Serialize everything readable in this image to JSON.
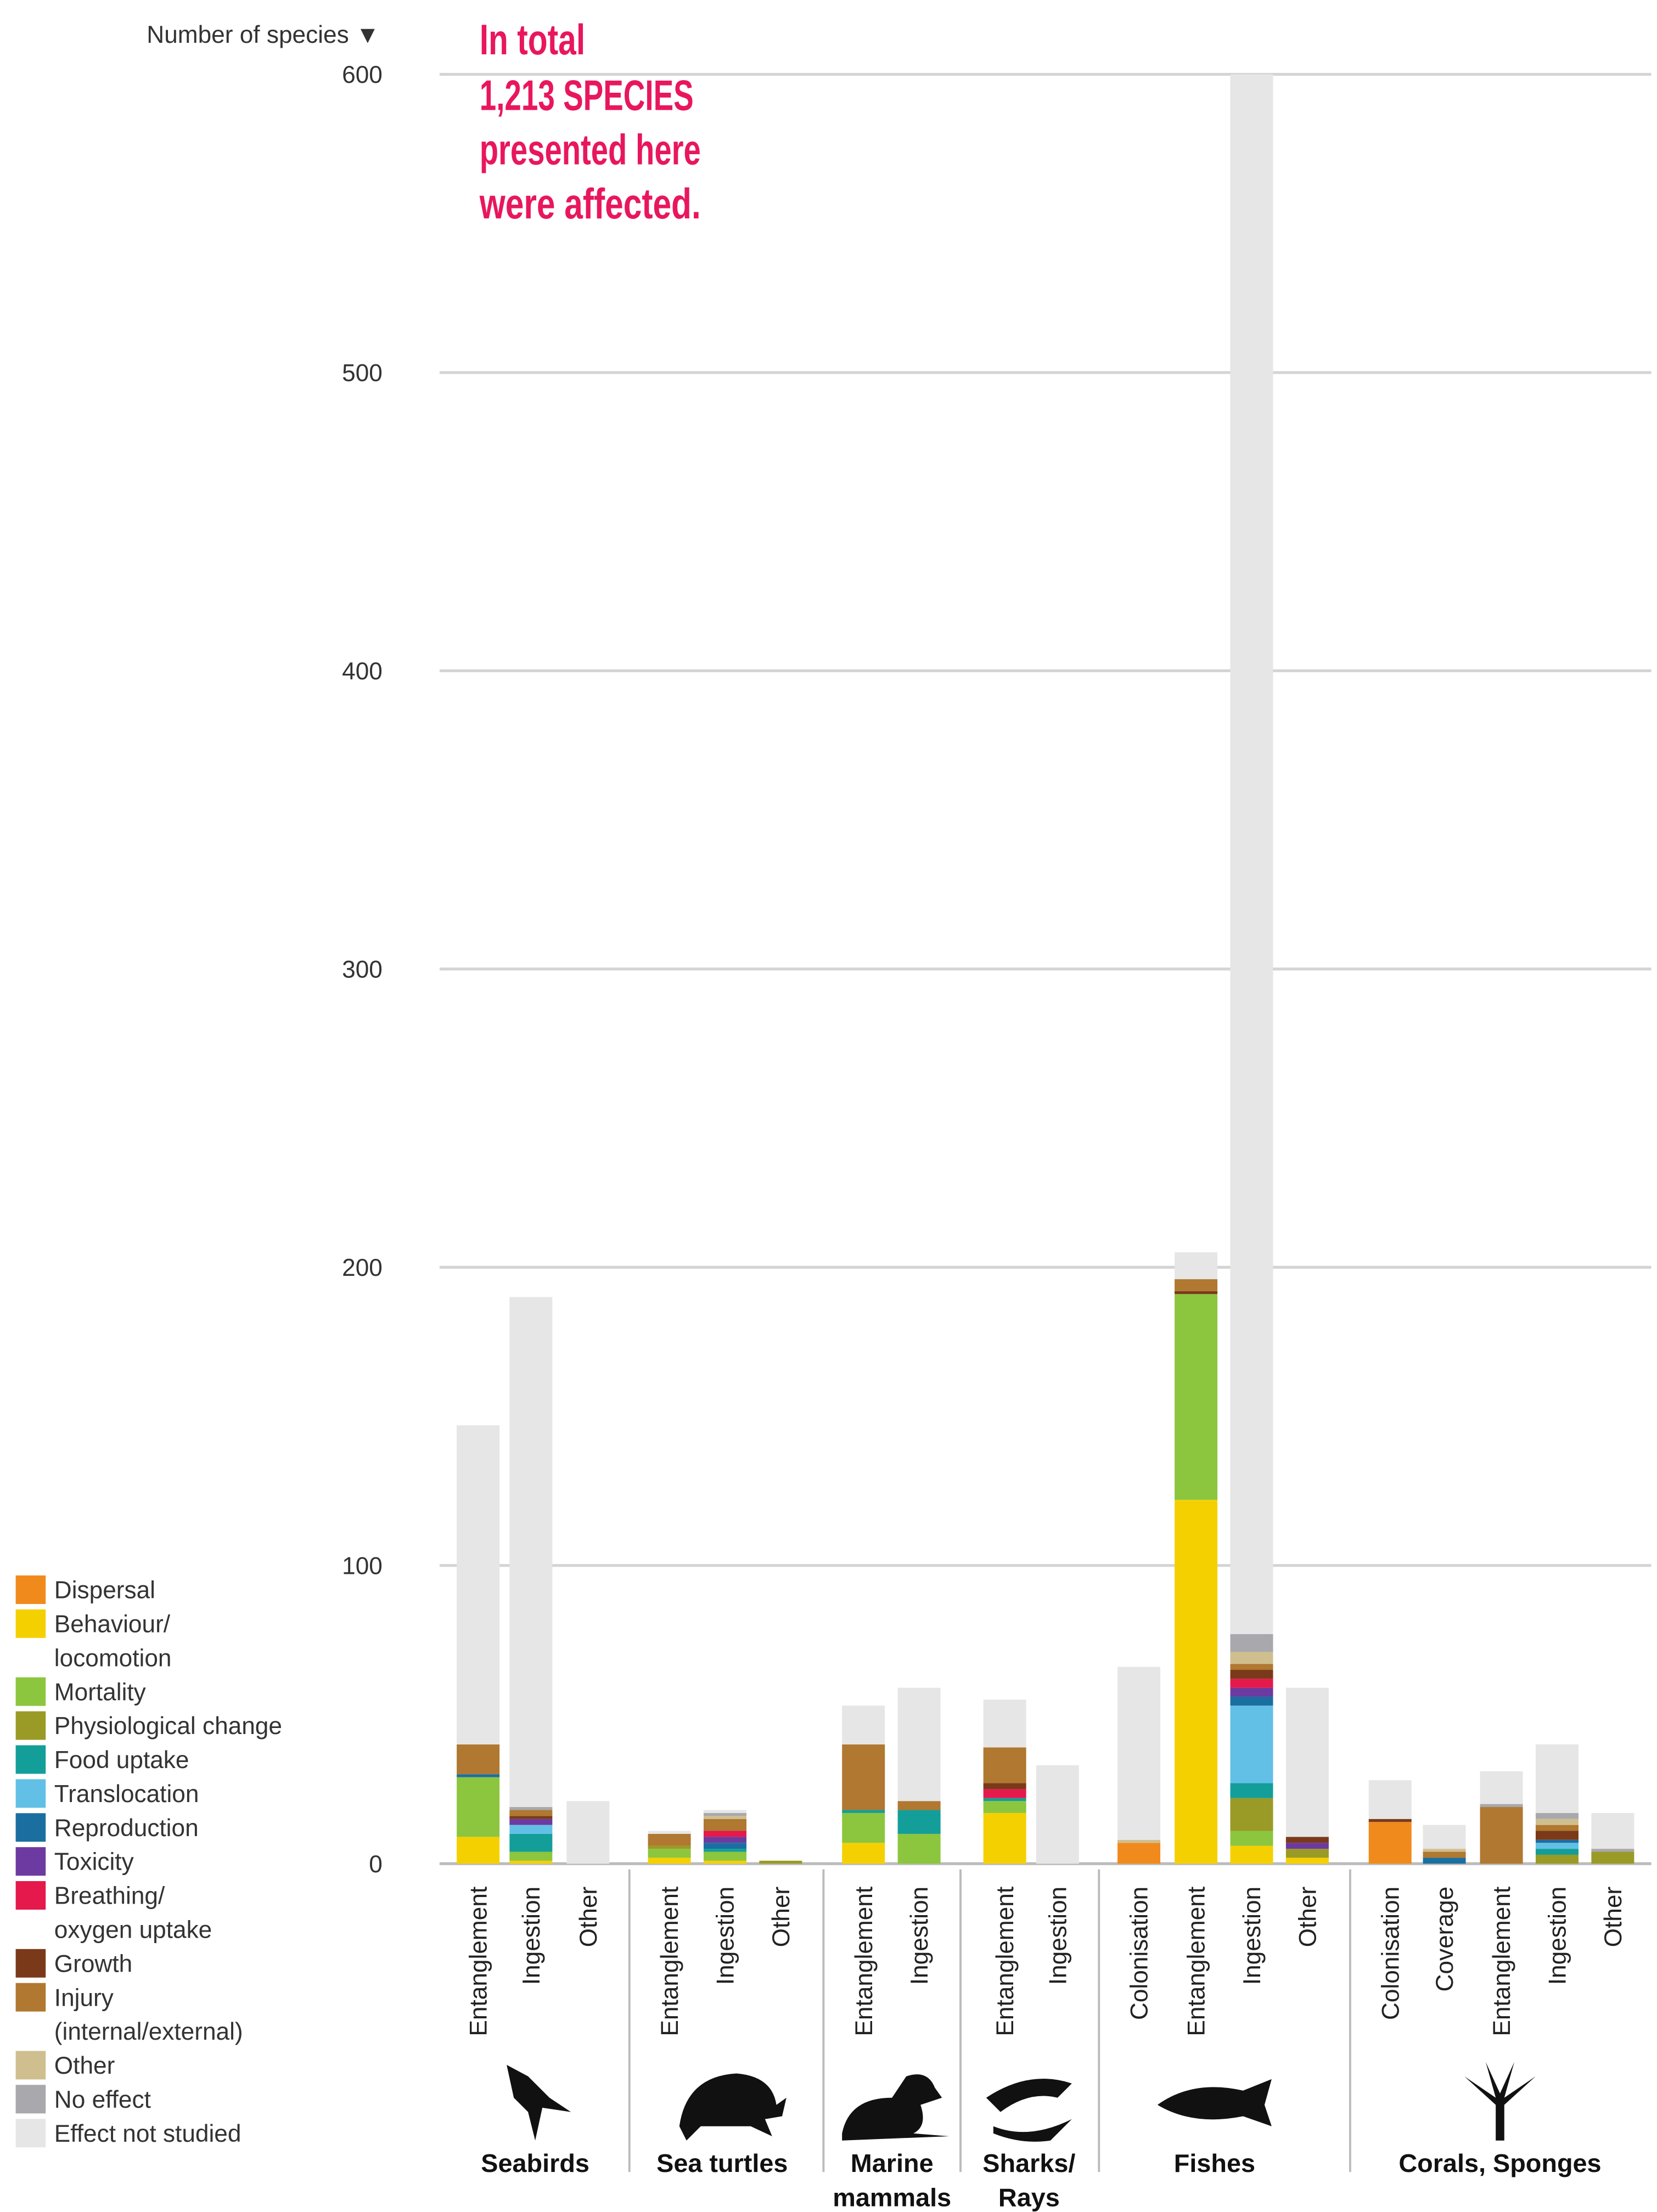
{
  "chart_data": {
    "type": "bar",
    "stacked": true,
    "ylabel": "Number of species ▼",
    "ylim": [
      0,
      600
    ],
    "yticks": [
      "0",
      "100",
      "200",
      "300",
      "400",
      "500",
      "600"
    ],
    "grid": true,
    "legend_position": "bottom-left",
    "annotation": [
      "In total",
      "1,213 SPECIES",
      "presented here",
      "were affected."
    ],
    "effects": [
      {
        "key": "dispersal",
        "label": [
          "Dispersal"
        ],
        "color": "#f18a1c"
      },
      {
        "key": "behaviour",
        "label": [
          "Behaviour/",
          "locomotion"
        ],
        "color": "#f5d000"
      },
      {
        "key": "mortality",
        "label": [
          "Mortality"
        ],
        "color": "#8cc63e"
      },
      {
        "key": "physio",
        "label": [
          "Physiological change"
        ],
        "color": "#9a9a26"
      },
      {
        "key": "food",
        "label": [
          "Food uptake"
        ],
        "color": "#139e99"
      },
      {
        "key": "transloc",
        "label": [
          "Translocation"
        ],
        "color": "#62c0e6"
      },
      {
        "key": "repro",
        "label": [
          "Reproduction"
        ],
        "color": "#1a6fa0"
      },
      {
        "key": "toxicity",
        "label": [
          "Toxicity"
        ],
        "color": "#6c3aa0"
      },
      {
        "key": "breathing",
        "label": [
          "Breathing/",
          "oxygen uptake"
        ],
        "color": "#e5194b"
      },
      {
        "key": "growth",
        "label": [
          "Growth"
        ],
        "color": "#7a3a1a"
      },
      {
        "key": "injury",
        "label": [
          "Injury",
          "(internal/external)"
        ],
        "color": "#b07830"
      },
      {
        "key": "other",
        "label": [
          "Other"
        ],
        "color": "#cfbf8f"
      },
      {
        "key": "noeffect",
        "label": [
          "No effect"
        ],
        "color": "#a8a8ad"
      },
      {
        "key": "notstudied",
        "label": [
          "Effect not studied"
        ],
        "color": "#e6e6e6"
      }
    ],
    "groups": [
      {
        "name": [
          "Seabirds"
        ],
        "icon": "seabird-icon",
        "bars": [
          {
            "label": "Entanglement",
            "values": {
              "behaviour": 9,
              "mortality": 20,
              "repro": 1,
              "injury": 10,
              "notstudied": 107
            }
          },
          {
            "label": "Ingestion",
            "values": {
              "behaviour": 1,
              "mortality": 3,
              "food": 6,
              "transloc": 3,
              "toxicity": 2,
              "growth": 1,
              "injury": 2,
              "noeffect": 1,
              "notstudied": 171
            }
          },
          {
            "label": "Other",
            "values": {
              "notstudied": 21
            }
          }
        ]
      },
      {
        "name": [
          "Sea turtles"
        ],
        "icon": "sea-turtle-icon",
        "bars": [
          {
            "label": "Entanglement",
            "values": {
              "behaviour": 2,
              "mortality": 3,
              "physio": 1,
              "injury": 4,
              "notstudied": 1
            }
          },
          {
            "label": "Ingestion",
            "values": {
              "behaviour": 1,
              "mortality": 3,
              "food": 1,
              "repro": 2,
              "toxicity": 2,
              "breathing": 2,
              "injury": 4,
              "other": 1,
              "noeffect": 1,
              "notstudied": 1
            }
          },
          {
            "label": "Other",
            "values": {
              "physio": 1
            }
          }
        ]
      },
      {
        "name": [
          "Marine",
          "mammals"
        ],
        "icon": "seal-icon",
        "bars": [
          {
            "label": "Entanglement",
            "values": {
              "behaviour": 7,
              "mortality": 10,
              "food": 1,
              "injury": 22,
              "notstudied": 13
            }
          },
          {
            "label": "Ingestion",
            "values": {
              "mortality": 10,
              "food": 8,
              "injury": 3,
              "notstudied": 38
            }
          }
        ]
      },
      {
        "name": [
          "Sharks/",
          "Rays"
        ],
        "icon": "shark-icon",
        "bars": [
          {
            "label": "Entanglement",
            "values": {
              "behaviour": 17,
              "mortality": 4,
              "food": 1,
              "breathing": 3,
              "growth": 2,
              "injury": 12,
              "notstudied": 16
            }
          },
          {
            "label": "Ingestion",
            "values": {
              "notstudied": 33
            }
          }
        ]
      },
      {
        "name": [
          "Fishes"
        ],
        "icon": "fish-icon",
        "bars": [
          {
            "label": "Colonisation",
            "values": {
              "dispersal": 7,
              "other": 1,
              "notstudied": 58
            }
          },
          {
            "label": "Entanglement",
            "values": {
              "behaviour": 122,
              "mortality": 69,
              "growth": 1,
              "injury": 4,
              "notstudied": 9
            }
          },
          {
            "label": "Ingestion",
            "values": {
              "behaviour": 6,
              "mortality": 5,
              "physio": 11,
              "food": 5,
              "transloc": 26,
              "repro": 3,
              "toxicity": 3,
              "breathing": 3,
              "growth": 3,
              "injury": 2,
              "other": 4,
              "noeffect": 6,
              "notstudied": 523
            }
          },
          {
            "label": "Other",
            "values": {
              "behaviour": 2,
              "physio": 3,
              "growth": 2,
              "toxicity": 2,
              "notstudied": 50
            }
          }
        ]
      },
      {
        "name": [
          "Corals, Sponges"
        ],
        "icon": "coral-icon",
        "bars": [
          {
            "label": "Colonisation",
            "values": {
              "dispersal": 14,
              "growth": 1,
              "notstudied": 13
            }
          },
          {
            "label": "Coverage",
            "values": {
              "repro": 2,
              "injury": 2,
              "other": 1,
              "notstudied": 8
            }
          },
          {
            "label": "Entanglement",
            "values": {
              "injury": 19,
              "noeffect": 1,
              "notstudied": 11
            }
          },
          {
            "label": "Ingestion",
            "values": {
              "physio": 3,
              "food": 2,
              "transloc": 2,
              "repro": 1,
              "growth": 3,
              "injury": 2,
              "other": 2,
              "noeffect": 2,
              "notstudied": 23
            }
          },
          {
            "label": "Other",
            "values": {
              "physio": 4,
              "noeffect": 1,
              "notstudied": 12
            }
          }
        ]
      }
    ]
  }
}
